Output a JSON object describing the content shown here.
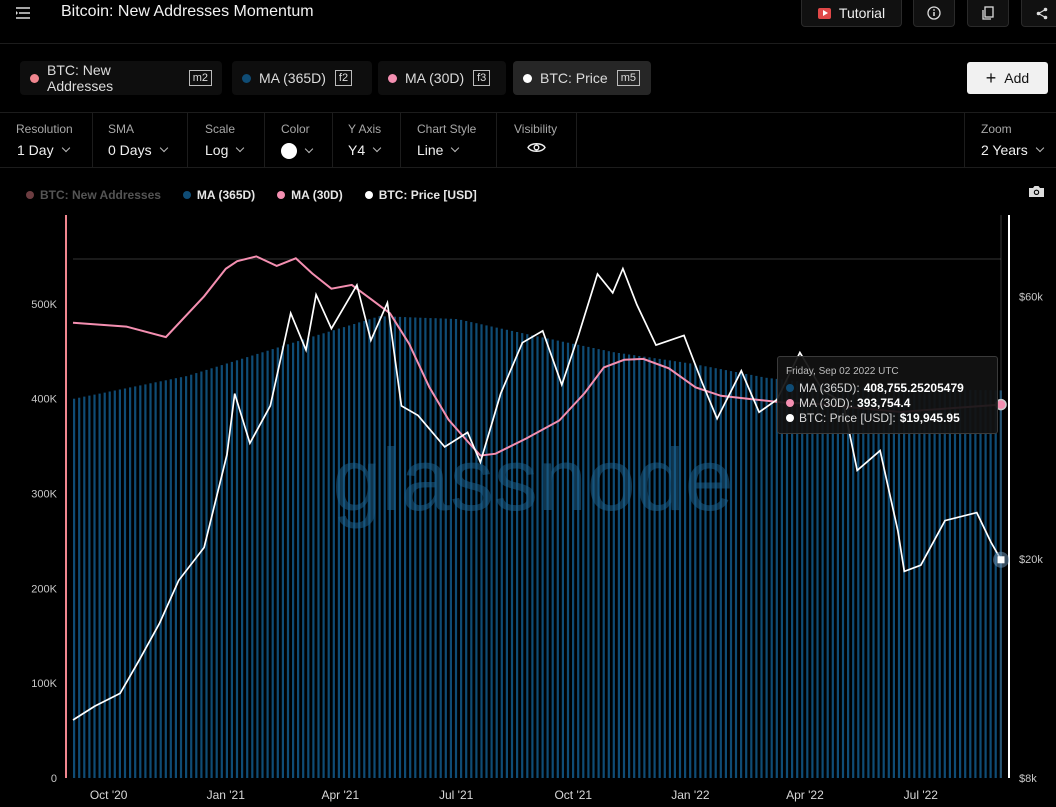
{
  "header": {
    "title": "Bitcoin: New Addresses Momentum",
    "tutorial_label": "Tutorial"
  },
  "metrics": [
    {
      "label": "BTC: New Addresses",
      "key": "m2",
      "color": "#f0868f"
    },
    {
      "label": "MA (365D)",
      "key": "f2",
      "color": "#0f4c75"
    },
    {
      "label": "MA (30D)",
      "key": "f3",
      "color": "#f48fb1"
    },
    {
      "label": "BTC: Price",
      "key": "m5",
      "color": "#ffffff"
    }
  ],
  "add_label": "Add",
  "controls": {
    "resolution": {
      "label": "Resolution",
      "value": "1 Day"
    },
    "sma": {
      "label": "SMA",
      "value": "0 Days"
    },
    "scale": {
      "label": "Scale",
      "value": "Log"
    },
    "color": {
      "label": "Color"
    },
    "yaxis": {
      "label": "Y Axis",
      "value": "Y4"
    },
    "chart_style": {
      "label": "Chart Style",
      "value": "Line"
    },
    "visibility": {
      "label": "Visibility"
    },
    "zoom": {
      "label": "Zoom",
      "value": "2 Years"
    }
  },
  "legend": [
    {
      "label": "BTC: New Addresses",
      "color": "#f0868f"
    },
    {
      "label": "MA (365D)",
      "color": "#0f4c75"
    },
    {
      "label": "MA (30D)",
      "color": "#f48fb1"
    },
    {
      "label": "BTC: Price [USD]",
      "color": "#ffffff"
    }
  ],
  "watermark": "glassnode",
  "tooltip": {
    "date": "Friday, Sep 02 2022 UTC",
    "rows": [
      {
        "label": "MA (365D):",
        "value": "408,755.25205479",
        "color": "#0f4c75"
      },
      {
        "label": "MA (30D):",
        "value": "393,754.4",
        "color": "#f48fb1"
      },
      {
        "label": "BTC: Price [USD]:",
        "value": "$19,945.95",
        "color": "#ffffff"
      }
    ]
  },
  "chart_data": {
    "type": "line",
    "x_axis": {
      "start": "2020-09-03",
      "end": "2022-09-02",
      "ticks": [
        "Oct '20",
        "Jan '21",
        "Apr '21",
        "Jul '21",
        "Oct '21",
        "Jan '22",
        "Apr '22",
        "Jul '22"
      ]
    },
    "y_left": {
      "ticks": [
        "0",
        "100K",
        "200K",
        "300K",
        "400K",
        "500K"
      ],
      "min": 0,
      "max": 580000
    },
    "y_right": {
      "scale": "log",
      "ticks": [
        "$8k",
        "$20k",
        "$60k"
      ],
      "min": 8000,
      "max": 80000
    },
    "series": [
      {
        "name": "MA (365D)",
        "type": "bar",
        "axis": "left",
        "color": "#0f4c75",
        "points": [
          [
            "2020-09-03",
            400000
          ],
          [
            "2020-12-01",
            424000
          ],
          [
            "2021-03-01",
            462000
          ],
          [
            "2021-05-01",
            487000
          ],
          [
            "2021-07-01",
            484000
          ],
          [
            "2021-09-01",
            466000
          ],
          [
            "2021-11-01",
            449000
          ],
          [
            "2022-01-01",
            437000
          ],
          [
            "2022-03-01",
            422000
          ],
          [
            "2022-05-01",
            413000
          ],
          [
            "2022-07-01",
            410000
          ],
          [
            "2022-09-02",
            408755
          ]
        ]
      },
      {
        "name": "MA (30D)",
        "type": "line",
        "axis": "left",
        "color": "#f48fb1",
        "points": [
          [
            "2020-09-03",
            480000
          ],
          [
            "2020-10-15",
            476000
          ],
          [
            "2020-11-15",
            465000
          ],
          [
            "2020-12-15",
            508000
          ],
          [
            "2021-01-01",
            537000
          ],
          [
            "2021-01-10",
            545000
          ],
          [
            "2021-01-25",
            550000
          ],
          [
            "2021-02-10",
            540000
          ],
          [
            "2021-02-25",
            548000
          ],
          [
            "2021-03-10",
            532000
          ],
          [
            "2021-03-25",
            516000
          ],
          [
            "2021-04-10",
            520000
          ],
          [
            "2021-04-25",
            505000
          ],
          [
            "2021-05-10",
            490000
          ],
          [
            "2021-05-25",
            458000
          ],
          [
            "2021-06-10",
            412000
          ],
          [
            "2021-06-25",
            378000
          ],
          [
            "2021-07-10",
            355000
          ],
          [
            "2021-07-20",
            340000
          ],
          [
            "2021-08-01",
            342000
          ],
          [
            "2021-08-25",
            358000
          ],
          [
            "2021-09-20",
            377000
          ],
          [
            "2021-10-10",
            406000
          ],
          [
            "2021-10-25",
            433000
          ],
          [
            "2021-11-10",
            441000
          ],
          [
            "2021-11-25",
            442000
          ],
          [
            "2021-12-15",
            432000
          ],
          [
            "2022-01-05",
            412000
          ],
          [
            "2022-01-25",
            403000
          ],
          [
            "2022-02-15",
            400000
          ],
          [
            "2022-03-15",
            396000
          ],
          [
            "2022-04-15",
            394000
          ],
          [
            "2022-05-15",
            390000
          ],
          [
            "2022-06-15",
            386000
          ],
          [
            "2022-07-15",
            389000
          ],
          [
            "2022-08-15",
            392000
          ],
          [
            "2022-09-02",
            393754
          ]
        ]
      },
      {
        "name": "BTC: Price [USD]",
        "type": "line",
        "axis": "right",
        "color": "#ffffff",
        "points": [
          [
            "2020-09-03",
            10200
          ],
          [
            "2020-09-20",
            10800
          ],
          [
            "2020-10-10",
            11400
          ],
          [
            "2020-10-25",
            13100
          ],
          [
            "2020-11-10",
            15300
          ],
          [
            "2020-11-25",
            18300
          ],
          [
            "2020-12-15",
            21000
          ],
          [
            "2021-01-02",
            31000
          ],
          [
            "2021-01-08",
            40000
          ],
          [
            "2021-01-20",
            32500
          ],
          [
            "2021-02-05",
            38000
          ],
          [
            "2021-02-21",
            56000
          ],
          [
            "2021-03-05",
            48000
          ],
          [
            "2021-03-13",
            60500
          ],
          [
            "2021-03-25",
            52500
          ],
          [
            "2021-04-14",
            63000
          ],
          [
            "2021-04-25",
            50000
          ],
          [
            "2021-05-08",
            58500
          ],
          [
            "2021-05-19",
            38000
          ],
          [
            "2021-06-01",
            36500
          ],
          [
            "2021-06-22",
            32000
          ],
          [
            "2021-07-10",
            34000
          ],
          [
            "2021-07-20",
            30000
          ],
          [
            "2021-08-05",
            40000
          ],
          [
            "2021-08-22",
            49500
          ],
          [
            "2021-09-07",
            52000
          ],
          [
            "2021-09-22",
            41500
          ],
          [
            "2021-10-05",
            51000
          ],
          [
            "2021-10-20",
            66000
          ],
          [
            "2021-11-01",
            61000
          ],
          [
            "2021-11-09",
            67500
          ],
          [
            "2021-11-20",
            58000
          ],
          [
            "2021-12-05",
            49000
          ],
          [
            "2021-12-27",
            51000
          ],
          [
            "2022-01-10",
            42000
          ],
          [
            "2022-01-22",
            36000
          ],
          [
            "2022-02-10",
            44000
          ],
          [
            "2022-02-24",
            37000
          ],
          [
            "2022-03-10",
            39000
          ],
          [
            "2022-03-28",
            47500
          ],
          [
            "2022-04-15",
            40500
          ],
          [
            "2022-05-01",
            38500
          ],
          [
            "2022-05-12",
            29000
          ],
          [
            "2022-05-30",
            31500
          ],
          [
            "2022-06-13",
            22500
          ],
          [
            "2022-06-18",
            19000
          ],
          [
            "2022-07-01",
            19500
          ],
          [
            "2022-07-20",
            23500
          ],
          [
            "2022-08-14",
            24300
          ],
          [
            "2022-08-25",
            21500
          ],
          [
            "2022-09-02",
            19946
          ]
        ]
      }
    ]
  }
}
